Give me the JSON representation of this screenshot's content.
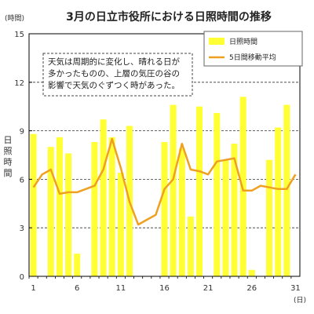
{
  "chart_data": {
    "type": "bar",
    "title": "3月の日立市役所における日照時間の推移",
    "y_unit": "(時間)",
    "x_unit": "(日)",
    "ylabel": "日照時間",
    "ylim": [
      0,
      15
    ],
    "yticks": [
      0,
      3,
      6,
      9,
      12,
      15
    ],
    "x_ticks": [
      1,
      6,
      11,
      16,
      21,
      26,
      31
    ],
    "days": [
      1,
      2,
      3,
      4,
      5,
      6,
      7,
      8,
      9,
      10,
      11,
      12,
      13,
      14,
      15,
      16,
      17,
      18,
      19,
      20,
      21,
      22,
      23,
      24,
      25,
      26,
      27,
      28,
      29,
      30,
      31
    ],
    "series": [
      {
        "name": "日照時間",
        "type": "bar",
        "color": "#ffff33",
        "values": [
          8.8,
          0,
          8.0,
          8.6,
          7.6,
          1.4,
          0,
          8.3,
          9.7,
          8.6,
          6.4,
          9.3,
          0,
          0,
          0,
          8.3,
          10.6,
          7.9,
          3.7,
          10.5,
          0,
          10.1,
          7.2,
          8.2,
          11.1,
          0.4,
          0,
          7.2,
          9.2,
          10.6,
          0
        ]
      },
      {
        "name": "5日間移動平均",
        "type": "line",
        "color": "#f0a020",
        "values": [
          5.5,
          6.3,
          6.6,
          5.1,
          5.2,
          5.2,
          5.4,
          5.6,
          6.6,
          8.5,
          6.7,
          4.6,
          3.2,
          3.5,
          3.8,
          5.4,
          6.0,
          8.2,
          6.6,
          6.5,
          6.3,
          7.1,
          7.2,
          7.3,
          5.3,
          5.3,
          5.6,
          5.5,
          5.4,
          5.4,
          6.3
        ]
      }
    ],
    "grid": "horizontal-dashed",
    "legend_position": "top-right",
    "annotation": "天気は周期的に変化し、晴れる日が\n多かったものの、上層の気圧の谷の\n影響で天気のぐずつく時があった。"
  },
  "colors": {
    "bar": "#ffff33",
    "line": "#f0a020",
    "grid": "#333333",
    "axis": "#000000"
  }
}
